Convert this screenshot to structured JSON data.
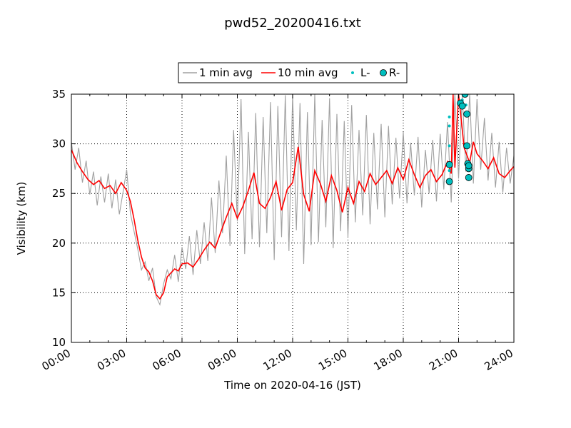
{
  "chart_data": {
    "type": "line",
    "title": "pwd52_20200416.txt",
    "xlabel": "Time on 2020-04-16 (JST)",
    "ylabel": "Visibility (km)",
    "xlim": [
      0,
      24
    ],
    "ylim": [
      10,
      35
    ],
    "x_tick_labels": [
      "00:00",
      "03:00",
      "06:00",
      "09:00",
      "12:00",
      "15:00",
      "18:00",
      "21:00",
      "24:00"
    ],
    "x_tick_hours": [
      0,
      3,
      6,
      9,
      12,
      15,
      18,
      21,
      24
    ],
    "y_ticks": [
      10,
      15,
      20,
      25,
      30,
      35
    ],
    "grid": true,
    "legend_placement": "top-center",
    "series": [
      {
        "name": "1 min avg",
        "color": "#a0a0a0",
        "style": "line",
        "x": [
          0.0,
          0.2,
          0.4,
          0.6,
          0.8,
          1.0,
          1.2,
          1.4,
          1.6,
          1.8,
          2.0,
          2.2,
          2.4,
          2.6,
          2.8,
          3.0,
          3.2,
          3.4,
          3.6,
          3.8,
          4.0,
          4.2,
          4.4,
          4.6,
          4.8,
          5.0,
          5.2,
          5.4,
          5.6,
          5.8,
          6.0,
          6.2,
          6.4,
          6.6,
          6.8,
          7.0,
          7.2,
          7.4,
          7.6,
          7.8,
          8.0,
          8.2,
          8.4,
          8.6,
          8.8,
          9.0,
          9.2,
          9.4,
          9.6,
          9.8,
          10.0,
          10.2,
          10.4,
          10.6,
          10.8,
          11.0,
          11.2,
          11.4,
          11.6,
          11.8,
          12.0,
          12.2,
          12.4,
          12.6,
          12.8,
          13.0,
          13.2,
          13.4,
          13.6,
          13.8,
          14.0,
          14.2,
          14.4,
          14.6,
          14.8,
          15.0,
          15.2,
          15.4,
          15.6,
          15.8,
          16.0,
          16.2,
          16.4,
          16.6,
          16.8,
          17.0,
          17.2,
          17.4,
          17.6,
          17.8,
          18.0,
          18.2,
          18.4,
          18.6,
          18.8,
          19.0,
          19.2,
          19.4,
          19.6,
          19.8,
          20.0,
          20.2,
          20.4,
          20.6,
          20.8,
          21.0,
          21.2,
          21.4,
          21.6,
          21.8,
          22.0,
          22.2,
          22.4,
          22.6,
          22.8,
          23.0,
          23.2,
          23.4,
          23.6,
          23.8,
          24.0
        ],
        "y": [
          30.2,
          27.4,
          29.6,
          26.1,
          28.3,
          24.9,
          27.2,
          23.8,
          26.7,
          24.1,
          27.0,
          23.5,
          26.4,
          22.9,
          25.1,
          27.4,
          23.0,
          21.2,
          19.4,
          17.3,
          18.1,
          16.2,
          17.5,
          14.6,
          13.8,
          15.9,
          17.3,
          16.4,
          18.8,
          16.1,
          19.6,
          17.4,
          20.7,
          16.8,
          21.3,
          17.9,
          22.1,
          18.2,
          24.6,
          19.0,
          26.3,
          21.0,
          28.8,
          19.7,
          31.4,
          22.2,
          34.5,
          18.9,
          31.2,
          20.4,
          33.1,
          19.6,
          32.7,
          21.0,
          34.2,
          18.3,
          33.8,
          20.6,
          34.9,
          19.2,
          35.0,
          21.3,
          34.1,
          17.9,
          33.2,
          19.8,
          35.0,
          20.1,
          32.4,
          21.6,
          34.6,
          19.5,
          33.0,
          21.2,
          32.3,
          20.6,
          33.9,
          22.1,
          31.4,
          22.8,
          32.9,
          21.9,
          31.1,
          23.4,
          32.0,
          22.6,
          31.8,
          23.9,
          30.6,
          24.5,
          31.2,
          24.0,
          30.1,
          24.8,
          30.7,
          23.6,
          29.4,
          25.0,
          30.4,
          24.2,
          31.0,
          25.4,
          32.2,
          24.1,
          35.0,
          26.5,
          35.0,
          27.2,
          35.0,
          26.0,
          34.5,
          27.4,
          32.6,
          26.3,
          31.1,
          25.6,
          30.2,
          25.1,
          29.6,
          26.0,
          28.8
        ]
      },
      {
        "name": "10 min avg",
        "color": "#ff0000",
        "style": "line",
        "x": [
          0.0,
          0.3,
          0.6,
          0.9,
          1.2,
          1.5,
          1.8,
          2.1,
          2.4,
          2.7,
          3.0,
          3.2,
          3.4,
          3.6,
          3.8,
          4.0,
          4.2,
          4.4,
          4.6,
          4.8,
          5.0,
          5.2,
          5.4,
          5.6,
          5.8,
          6.0,
          6.3,
          6.6,
          6.9,
          7.2,
          7.5,
          7.8,
          8.1,
          8.4,
          8.7,
          9.0,
          9.3,
          9.6,
          9.9,
          10.2,
          10.5,
          10.8,
          11.1,
          11.4,
          11.7,
          12.0,
          12.3,
          12.6,
          12.9,
          13.2,
          13.5,
          13.8,
          14.1,
          14.4,
          14.7,
          15.0,
          15.3,
          15.6,
          15.9,
          16.2,
          16.5,
          16.8,
          17.1,
          17.4,
          17.7,
          18.0,
          18.3,
          18.6,
          18.9,
          19.2,
          19.5,
          19.8,
          20.1,
          20.4,
          20.6,
          20.7,
          20.8,
          21.0,
          21.3,
          21.6,
          21.8,
          22.0,
          22.3,
          22.6,
          22.9,
          23.2,
          23.5,
          23.8,
          24.0
        ],
        "y": [
          29.4,
          28.1,
          27.2,
          26.4,
          25.9,
          26.3,
          25.5,
          25.8,
          25.0,
          26.1,
          25.3,
          24.2,
          22.4,
          20.3,
          18.6,
          17.5,
          17.1,
          16.2,
          14.8,
          14.4,
          15.0,
          16.6,
          17.0,
          17.4,
          17.2,
          17.9,
          18.0,
          17.6,
          18.4,
          19.3,
          20.1,
          19.5,
          21.1,
          22.6,
          24.0,
          22.5,
          23.7,
          25.3,
          27.1,
          24.0,
          23.5,
          24.6,
          26.2,
          23.3,
          25.4,
          26.1,
          29.7,
          24.9,
          23.2,
          27.3,
          26.0,
          24.2,
          26.8,
          25.3,
          23.1,
          25.6,
          24.0,
          26.2,
          25.2,
          27.0,
          25.9,
          26.6,
          27.3,
          26.0,
          27.6,
          26.4,
          28.4,
          26.9,
          25.6,
          26.8,
          27.4,
          26.2,
          26.9,
          28.2,
          27.0,
          35.0,
          27.6,
          35.0,
          29.6,
          28.1,
          30.2,
          29.0,
          28.3,
          27.5,
          28.6,
          27.0,
          26.6,
          27.3,
          27.7
        ]
      },
      {
        "name": "L-",
        "color": "#00bfbf",
        "style": "dots",
        "x": [
          20.5,
          20.5,
          20.5,
          20.5,
          21.2,
          21.3,
          21.4
        ],
        "y": [
          32.7,
          31.8,
          29.8,
          27.3,
          34.4,
          35.0,
          33.9
        ]
      },
      {
        "name": "R-",
        "color": "#00bfbf",
        "style": "circles",
        "x": [
          20.5,
          20.5,
          21.1,
          21.2,
          21.35,
          21.45,
          21.45,
          21.5,
          21.55,
          21.55,
          21.55
        ],
        "y": [
          27.9,
          26.2,
          34.1,
          33.8,
          35.0,
          33.0,
          29.8,
          28.0,
          27.5,
          27.8,
          26.6
        ]
      }
    ]
  }
}
